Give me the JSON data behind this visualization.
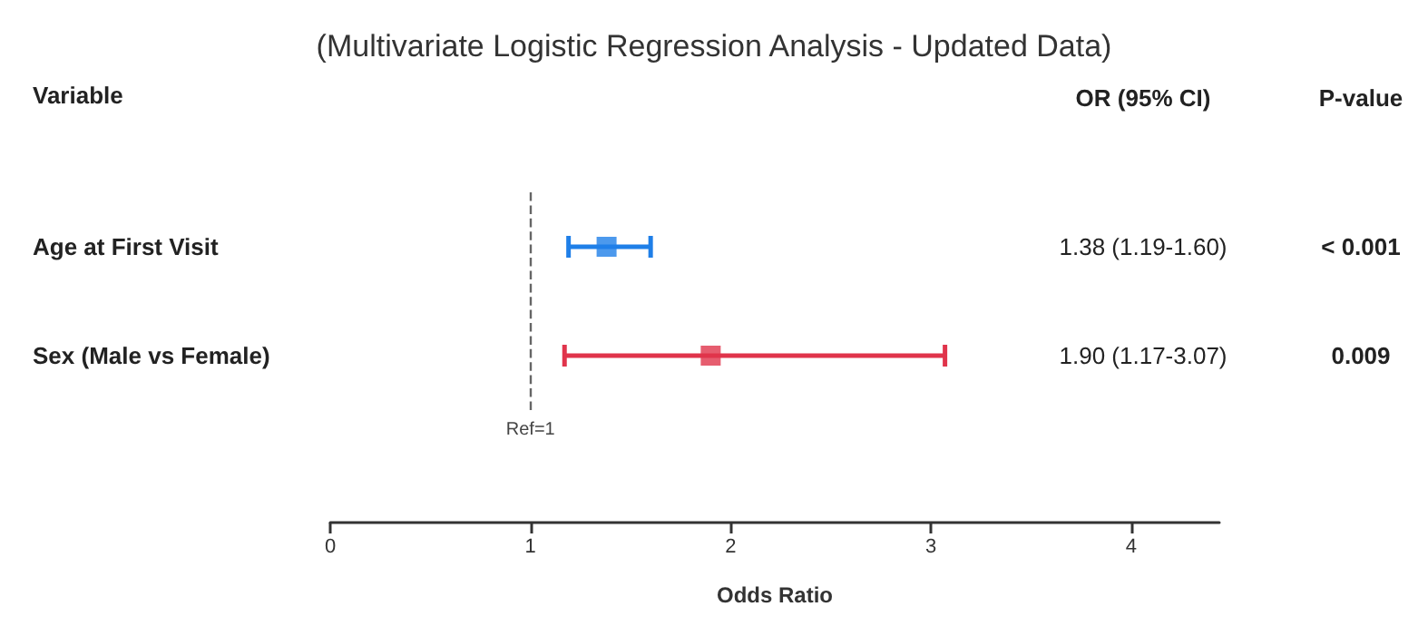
{
  "chart_data": {
    "type": "scatter",
    "orientation": "horizontal",
    "title": "(Multivariate Logistic Regression Analysis - Updated Data)",
    "xlabel": "Odds Ratio",
    "ylabel": "Variable",
    "categories": [
      "Age at First Visit",
      "Sex (Male vs Female)"
    ],
    "values": [
      1.38,
      1.9
    ],
    "errors": [
      [
        1.19,
        1.6
      ],
      [
        1.17,
        3.07
      ]
    ],
    "colors": [
      "#1f7fe8",
      "#e0344b"
    ],
    "annotations": [
      "OR (95% CI)",
      "P-value",
      "1.38 (1.19-1.60)",
      "< 0.001",
      "1.90 (1.17-3.07)",
      "0.009"
    ],
    "ref_lines": [
      {
        "axis": "x",
        "value": 1,
        "label": "Ref=1",
        "color": "#666666",
        "line_style": "dashed"
      }
    ],
    "xlim": [
      0,
      4.44
    ],
    "xticks": [
      0,
      1,
      2,
      3,
      4
    ],
    "marker": "square",
    "grid": false
  }
}
